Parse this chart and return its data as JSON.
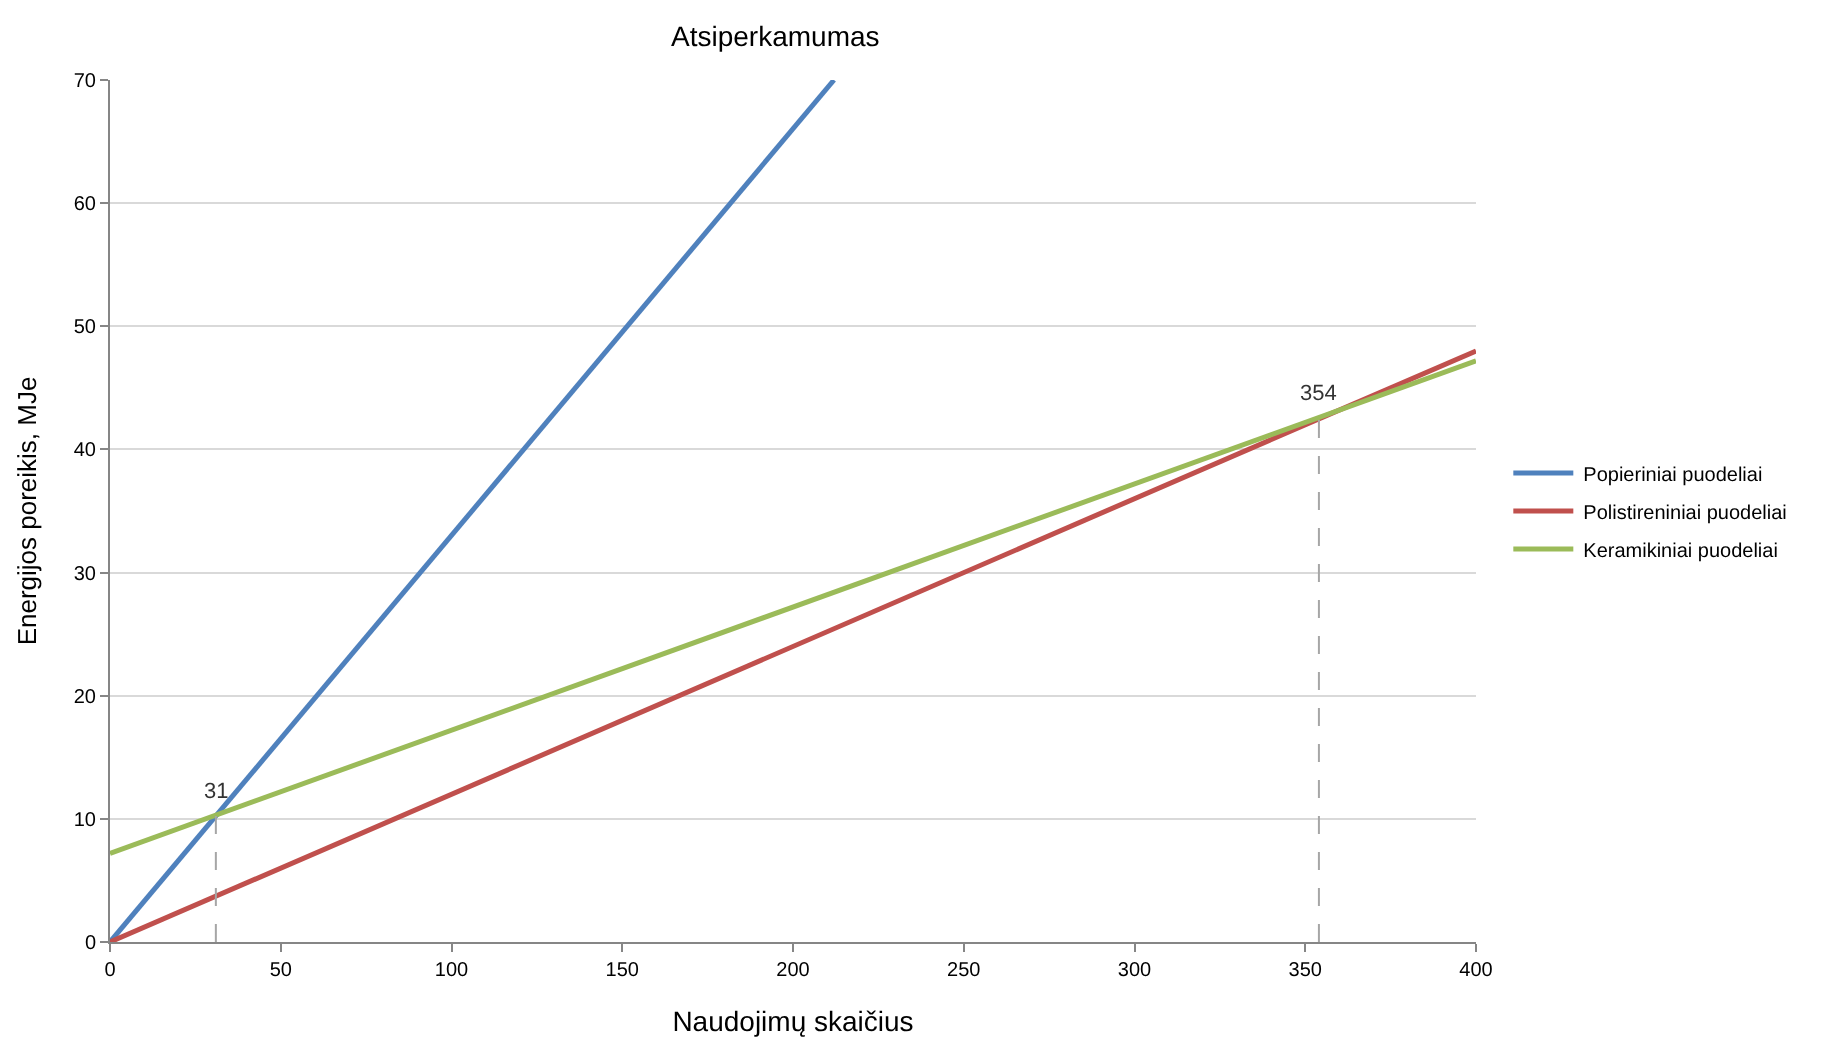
{
  "chart_data": {
    "type": "line",
    "title": "Atsiperkamumas",
    "xlabel": "Naudojimų skaičius",
    "ylabel": "Energijos poreikis, MJe",
    "xlim": [
      0,
      400
    ],
    "xticks": [
      0,
      50,
      100,
      150,
      200,
      250,
      300,
      350,
      400
    ],
    "ylim": [
      0,
      70
    ],
    "yticks": [
      0,
      10,
      20,
      30,
      40,
      50,
      60,
      70
    ],
    "grid": "y",
    "legend": "right",
    "marker": "none",
    "series": [
      {
        "name": "Popieriniai puodeliai",
        "color": "#4f81bd",
        "x": [
          0,
          212
        ],
        "values": [
          0,
          70
        ]
      },
      {
        "name": "Polistireniniai puodeliai",
        "color": "#c0504d",
        "x": [
          0,
          400
        ],
        "values": [
          0,
          48
        ]
      },
      {
        "name": "Keramikiniai puodeliai",
        "color": "#9bbb59",
        "x": [
          0,
          400
        ],
        "values": [
          7.2,
          47.2
        ]
      },
      {
        "color": "#a6a6a6",
        "line_style": "dashed",
        "x": [
          31,
          31
        ],
        "values": [
          0,
          10.3
        ]
      },
      {
        "color": "#a6a6a6",
        "line_style": "dashed",
        "x": [
          354,
          354
        ],
        "values": [
          0,
          42.6
        ]
      }
    ],
    "annotations": [
      {
        "text": "31",
        "x": 31,
        "y": 10.3
      },
      {
        "text": "354",
        "x": 354,
        "y": 42.6
      }
    ]
  }
}
